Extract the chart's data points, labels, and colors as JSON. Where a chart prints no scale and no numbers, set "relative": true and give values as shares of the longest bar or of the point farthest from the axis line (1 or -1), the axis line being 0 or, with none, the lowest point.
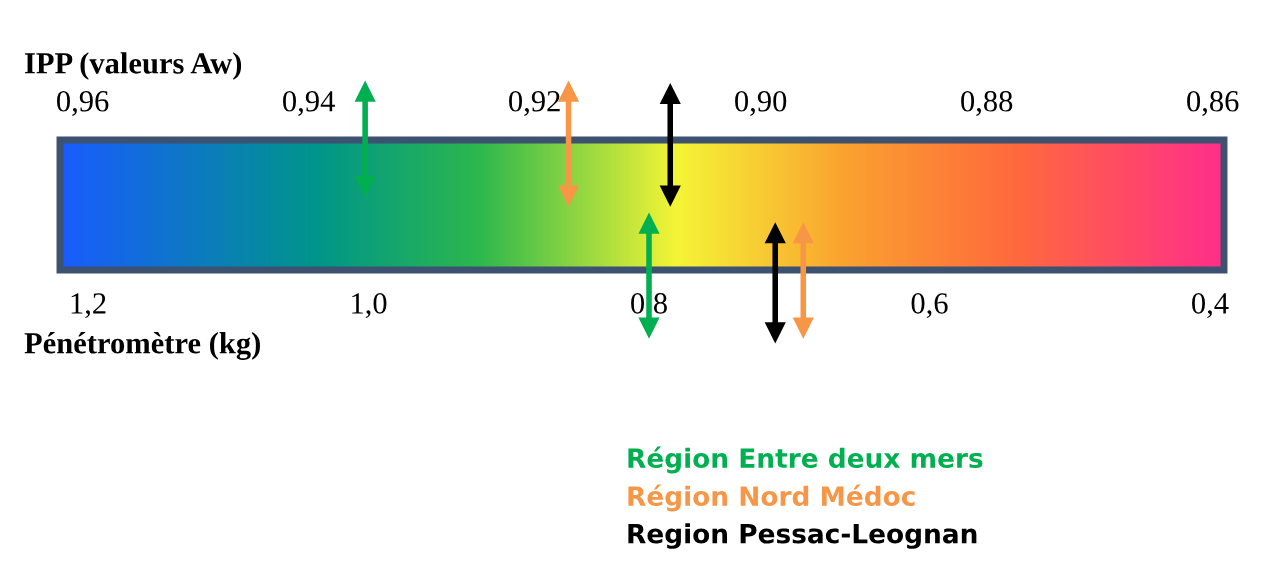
{
  "chart_data": {
    "type": "line",
    "relative": true,
    "xlabel": "Pénétromètre (kg)",
    "x2label": "IPP (valeurs Aw)",
    "xlim": [
      1.22,
      0.39
    ],
    "xticks": [
      {
        "value": 1.2,
        "label": "1,2"
      },
      {
        "value": 1.0,
        "label": "1,0"
      },
      {
        "value": 0.8,
        "label": "0,8"
      },
      {
        "value": 0.6,
        "label": "0,6"
      },
      {
        "value": 0.4,
        "label": "0,4"
      }
    ],
    "x2lim": [
      0.962,
      0.859
    ],
    "x2ticks": [
      {
        "value": 0.96,
        "label": "0,96"
      },
      {
        "value": 0.94,
        "label": "0,94"
      },
      {
        "value": 0.92,
        "label": "0,92"
      },
      {
        "value": 0.9,
        "label": "0,90"
      },
      {
        "value": 0.88,
        "label": "0,88"
      },
      {
        "value": 0.86,
        "label": "0,86"
      }
    ],
    "marker": "triangle",
    "legend": "bottom",
    "series": [
      {
        "name": "Région Entre deux mers",
        "color": "#00b050",
        "axis": "x2",
        "x": [
          0.935,
          0.935
        ],
        "values": [
          0.61,
          1
        ]
      },
      {
        "name": "Région Nord Médoc",
        "color": "#f79646",
        "axis": "x2",
        "x": [
          0.917,
          0.917
        ],
        "values": [
          0.57,
          1
        ]
      },
      {
        "name": "Region Pessac-Leognan",
        "color": "#000000",
        "axis": "x2",
        "x": [
          0.908,
          0.908
        ],
        "values": [
          0.57,
          0.99
        ]
      },
      {
        "color": "#00b050",
        "x": [
          0.8,
          0.8
        ],
        "values": [
          0.02,
          0.45
        ]
      },
      {
        "color": "#000000",
        "x": [
          0.71,
          0.71
        ],
        "values": [
          0,
          0.41
        ]
      },
      {
        "color": "#f79646",
        "x": [
          0.69,
          0.69
        ],
        "values": [
          0.02,
          0.41
        ]
      }
    ]
  }
}
